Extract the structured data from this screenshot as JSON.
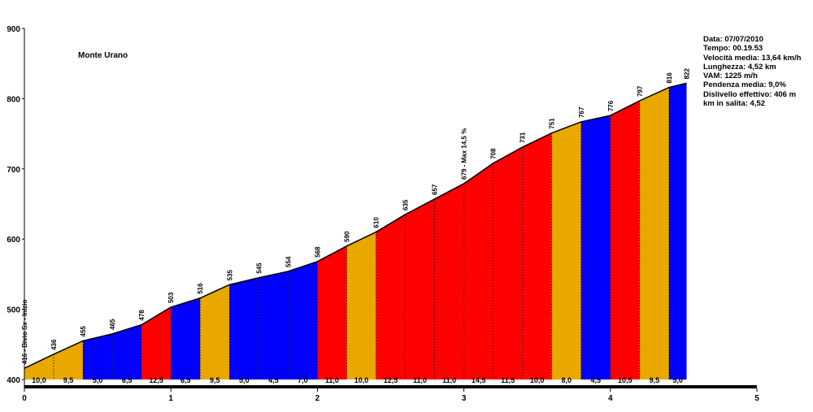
{
  "chart_data": {
    "type": "area",
    "title": "Monte Urano",
    "xlim": [
      0,
      5
    ],
    "ylim": [
      400,
      900
    ],
    "x_ticks": [
      0,
      1,
      2,
      3,
      4,
      5
    ],
    "y_ticks": [
      400,
      500,
      600,
      700,
      800,
      900
    ],
    "grid": false,
    "points": [
      {
        "x": 0.0,
        "elev": 416,
        "label": "416 - Bivio Sx - Inizio"
      },
      {
        "x": 0.2,
        "elev": 436,
        "label": "436"
      },
      {
        "x": 0.4,
        "elev": 455,
        "label": "455"
      },
      {
        "x": 0.6,
        "elev": 465,
        "label": "465"
      },
      {
        "x": 0.8,
        "elev": 478,
        "label": "478"
      },
      {
        "x": 1.0,
        "elev": 503,
        "label": "503"
      },
      {
        "x": 1.2,
        "elev": 516,
        "label": "516"
      },
      {
        "x": 1.4,
        "elev": 535,
        "label": "535"
      },
      {
        "x": 1.6,
        "elev": 545,
        "label": "545"
      },
      {
        "x": 1.8,
        "elev": 554,
        "label": "554"
      },
      {
        "x": 2.0,
        "elev": 568,
        "label": "568"
      },
      {
        "x": 2.2,
        "elev": 590,
        "label": "590"
      },
      {
        "x": 2.4,
        "elev": 610,
        "label": "610"
      },
      {
        "x": 2.6,
        "elev": 635,
        "label": "635"
      },
      {
        "x": 2.8,
        "elev": 657,
        "label": "657"
      },
      {
        "x": 3.0,
        "elev": 679,
        "label": "679 - Max 14,5 %"
      },
      {
        "x": 3.2,
        "elev": 708,
        "label": "708"
      },
      {
        "x": 3.4,
        "elev": 731,
        "label": "731"
      },
      {
        "x": 3.6,
        "elev": 751,
        "label": "751"
      },
      {
        "x": 3.8,
        "elev": 767,
        "label": "767"
      },
      {
        "x": 4.0,
        "elev": 776,
        "label": "776"
      },
      {
        "x": 4.2,
        "elev": 797,
        "label": "797"
      },
      {
        "x": 4.4,
        "elev": 816,
        "label": "816"
      },
      {
        "x": 4.52,
        "elev": 822,
        "label": "822"
      }
    ],
    "segments": [
      {
        "from": 0.0,
        "to": 0.2,
        "gradient": "10,0",
        "color": "#E8A800"
      },
      {
        "from": 0.2,
        "to": 0.4,
        "gradient": "9,5",
        "color": "#E8A800"
      },
      {
        "from": 0.4,
        "to": 0.6,
        "gradient": "5,0",
        "color": "#0000FF"
      },
      {
        "from": 0.6,
        "to": 0.8,
        "gradient": "6,5",
        "color": "#0000FF"
      },
      {
        "from": 0.8,
        "to": 1.0,
        "gradient": "12,5",
        "color": "#FF0000"
      },
      {
        "from": 1.0,
        "to": 1.2,
        "gradient": "6,5",
        "color": "#0000FF"
      },
      {
        "from": 1.2,
        "to": 1.4,
        "gradient": "9,5",
        "color": "#E8A800"
      },
      {
        "from": 1.4,
        "to": 1.6,
        "gradient": "5,0",
        "color": "#0000FF"
      },
      {
        "from": 1.6,
        "to": 1.8,
        "gradient": "4,5",
        "color": "#0000FF"
      },
      {
        "from": 1.8,
        "to": 2.0,
        "gradient": "7,0",
        "color": "#0000FF"
      },
      {
        "from": 2.0,
        "to": 2.2,
        "gradient": "11,0",
        "color": "#FF0000"
      },
      {
        "from": 2.2,
        "to": 2.4,
        "gradient": "10,0",
        "color": "#E8A800"
      },
      {
        "from": 2.4,
        "to": 2.6,
        "gradient": "12,5",
        "color": "#FF0000"
      },
      {
        "from": 2.6,
        "to": 2.8,
        "gradient": "11,0",
        "color": "#FF0000"
      },
      {
        "from": 2.8,
        "to": 3.0,
        "gradient": "11,0",
        "color": "#FF0000"
      },
      {
        "from": 3.0,
        "to": 3.2,
        "gradient": "14,5",
        "color": "#FF0000"
      },
      {
        "from": 3.2,
        "to": 3.4,
        "gradient": "11,5",
        "color": "#FF0000"
      },
      {
        "from": 3.4,
        "to": 3.6,
        "gradient": "10,0",
        "color": "#FF0000"
      },
      {
        "from": 3.6,
        "to": 3.8,
        "gradient": "8,0",
        "color": "#E8A800"
      },
      {
        "from": 3.8,
        "to": 4.0,
        "gradient": "4,5",
        "color": "#0000FF"
      },
      {
        "from": 4.0,
        "to": 4.2,
        "gradient": "10,5",
        "color": "#FF0000"
      },
      {
        "from": 4.2,
        "to": 4.4,
        "gradient": "9,5",
        "color": "#E8A800"
      },
      {
        "from": 4.4,
        "to": 4.52,
        "gradient": "5,0",
        "color": "#0000FF"
      }
    ]
  },
  "info": {
    "lines": [
      "Data: 07/07/2010",
      "Tempo: 00.19.53",
      "Velocità media: 13,64 km/h",
      "Lunghezza: 4,52 km",
      "VAM: 1225 m/h",
      "Pendenza media: 9,0%",
      "Dislivello effettivo: 406 m",
      "km in salita: 4,52"
    ]
  }
}
